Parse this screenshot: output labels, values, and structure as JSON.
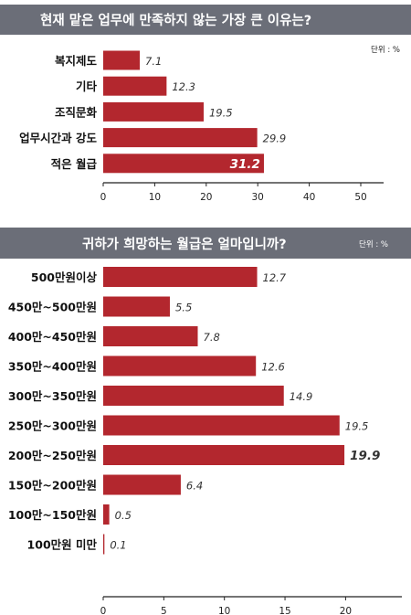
{
  "colors": {
    "bar": "#b3272e",
    "banner": "#6b6e78",
    "highlight_text": "#ffffff"
  },
  "chart_data": [
    {
      "type": "bar",
      "orientation": "horizontal",
      "title": "현재 맡은 업무에 만족하지 않는 가장 큰 이유는?",
      "unit_label": "단위 : %",
      "categories": [
        "복지제도",
        "기타",
        "조직문화",
        "업무시간과 강도",
        "적은 월급"
      ],
      "values": [
        7.1,
        12.3,
        19.5,
        29.9,
        31.2
      ],
      "value_labels": [
        "7.1",
        "12.3",
        "19.5",
        "29.9",
        "31.2"
      ],
      "xlim": [
        0,
        50
      ],
      "ticks": [
        "0",
        "10",
        "20",
        "30",
        "40",
        "50"
      ],
      "highlight_index": 4
    },
    {
      "type": "bar",
      "orientation": "horizontal",
      "title": "귀하가 희망하는 월급은 얼마입니까?",
      "unit_label": "단위 : %",
      "categories": [
        "500만원이상",
        "450만~500만원",
        "400만~450만원",
        "350만~400만원",
        "300만~350만원",
        "250만~300만원",
        "200만~250만원",
        "150만~200만원",
        "100만~150만원",
        "100만원 미만"
      ],
      "values": [
        12.7,
        5.5,
        7.8,
        12.6,
        14.9,
        19.5,
        19.9,
        6.4,
        0.5,
        0.1
      ],
      "value_labels": [
        "12.7",
        "5.5",
        "7.8",
        "12.6",
        "14.9",
        "19.5",
        "19.9",
        "6.4",
        "0.5",
        "0.1"
      ],
      "xlim": [
        0,
        25
      ],
      "ticks": [
        "0",
        "5",
        "10",
        "15",
        "20"
      ],
      "highlight_index": 6
    }
  ]
}
